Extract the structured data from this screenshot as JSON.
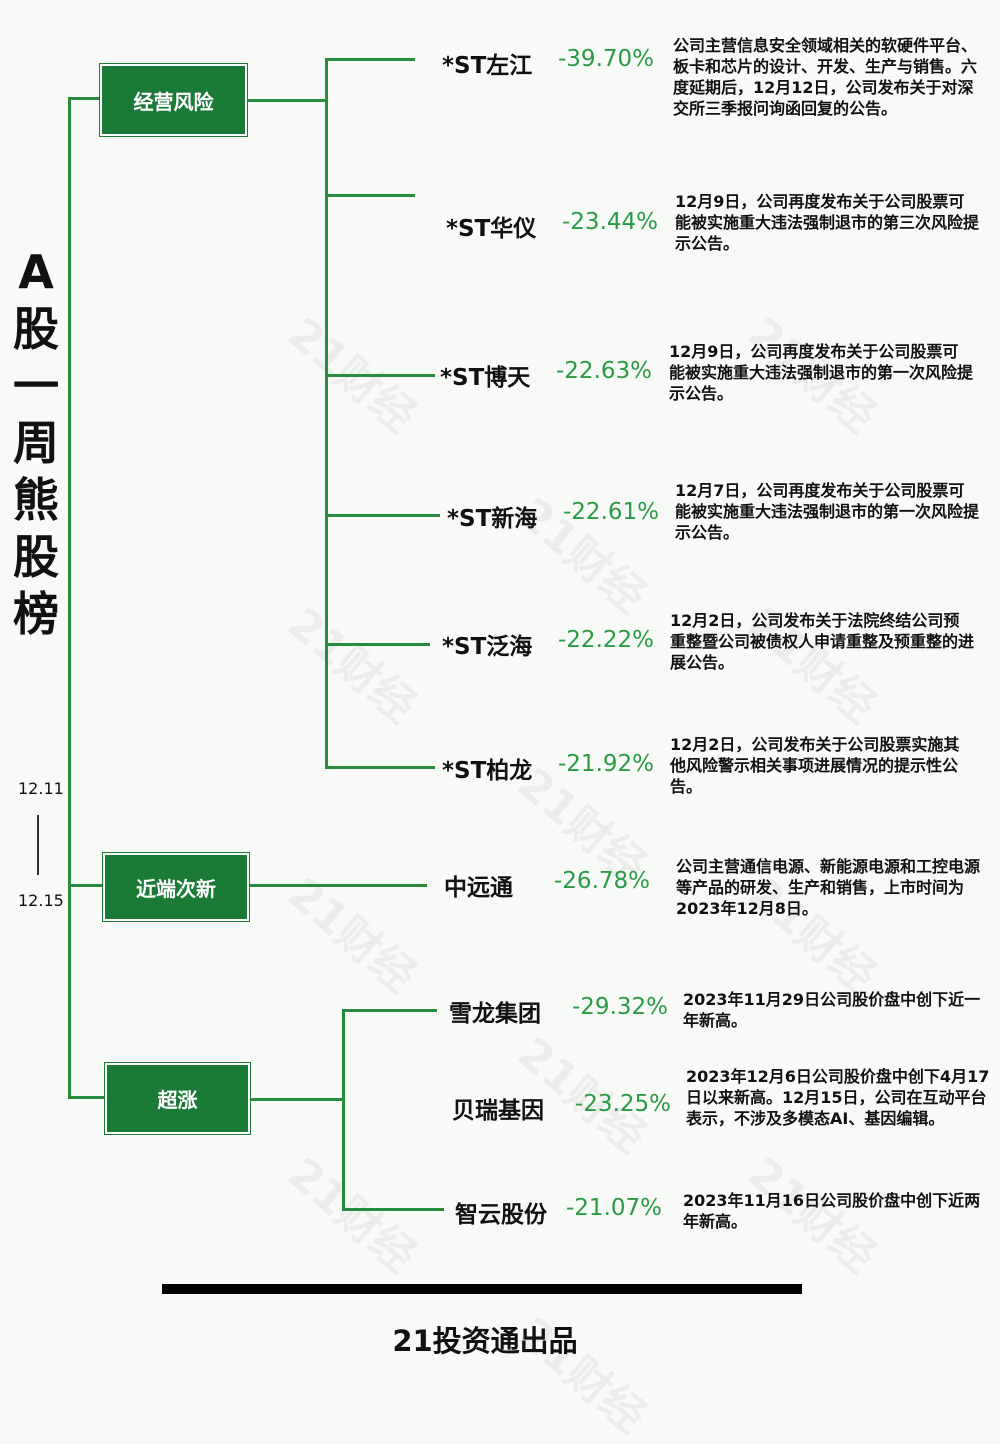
{
  "title_chars": [
    "A",
    "股",
    "一",
    "周",
    "熊",
    "股",
    "榜"
  ],
  "date_start": "12.11",
  "date_end": "12.15",
  "watermark": "21财经",
  "categories": [
    {
      "label": "经营风险"
    },
    {
      "label": "近端次新"
    },
    {
      "label": "超涨"
    }
  ],
  "stocks": [
    {
      "name": "*ST左江",
      "change": "-39.70%",
      "note": "公司主营信息安全领域相关的软硬件平台、板卡和芯片的设计、开发、生产与销售。六度延期后，12月12日，公司发布关于对深交所三季报问询函回复的公告。"
    },
    {
      "name": "*ST华仪",
      "change": "-23.44%",
      "note": "12月9日，公司再度发布关于公司股票可能被实施重大违法强制退市的第三次风险提示公告。"
    },
    {
      "name": "*ST博天",
      "change": "-22.63%",
      "note": "12月9日，公司再度发布关于公司股票可能被实施重大违法强制退市的第一次风险提示公告。"
    },
    {
      "name": "*ST新海",
      "change": "-22.61%",
      "note": "12月7日，公司再度发布关于公司股票可能被实施重大违法强制退市的第一次风险提示公告。"
    },
    {
      "name": "*ST泛海",
      "change": "-22.22%",
      "note": "12月2日，公司发布关于法院终结公司预重整暨公司被债权人申请重整及预重整的进展公告。"
    },
    {
      "name": "*ST柏龙",
      "change": "-21.92%",
      "note": "12月2日，公司发布关于公司股票实施其他风险警示相关事项进展情况的提示性公告。"
    },
    {
      "name": "中远通",
      "change": "-26.78%",
      "note": "公司主营通信电源、新能源电源和工控电源等产品的研发、生产和销售，上市时间为2023年12月8日。"
    },
    {
      "name": "雪龙集团",
      "change": "-29.32%",
      "note": "2023年11月29日公司股价盘中创下近一年新高。"
    },
    {
      "name": "贝瑞基因",
      "change": "-23.25%",
      "note": "2023年12月6日公司股价盘中创下4月17日以来新高。12月15日，公司在互动平台表示，不涉及多模态AI、基因编辑。"
    },
    {
      "name": "智云股份",
      "change": "-21.07%",
      "note": "2023年11月16日公司股价盘中创下近两年新高。"
    }
  ],
  "footer": "21投资通出品",
  "colors": {
    "accent": "#1c7a37",
    "line": "#2a8a3e",
    "pct": "#2a9a45"
  }
}
